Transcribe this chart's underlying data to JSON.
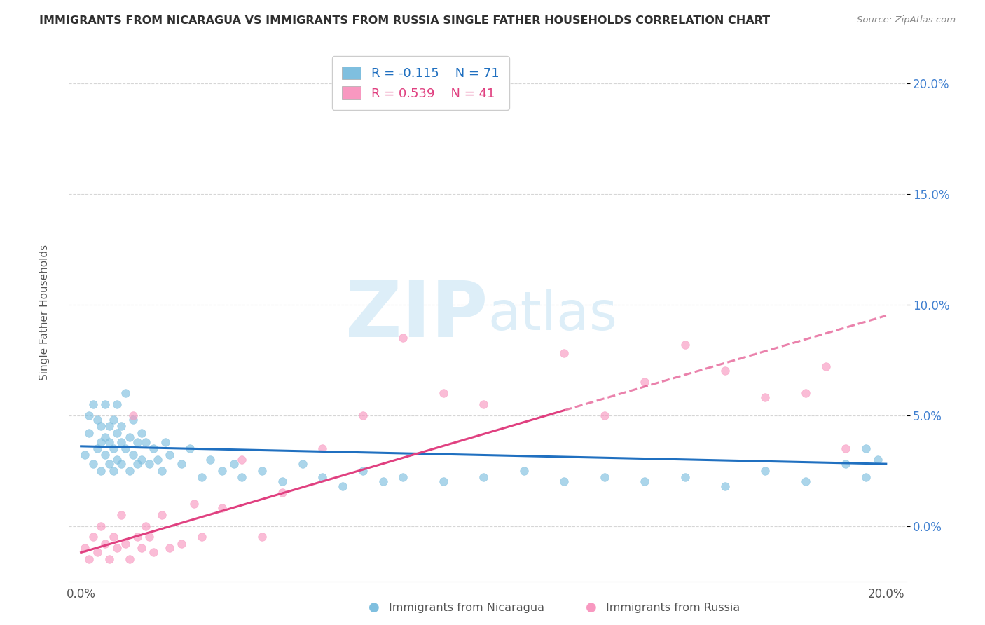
{
  "title": "IMMIGRANTS FROM NICARAGUA VS IMMIGRANTS FROM RUSSIA SINGLE FATHER HOUSEHOLDS CORRELATION CHART",
  "source": "Source: ZipAtlas.com",
  "ylabel": "Single Father Households",
  "xlim": [
    -0.003,
    0.205
  ],
  "ylim": [
    -0.025,
    0.215
  ],
  "yticks": [
    0.0,
    0.05,
    0.1,
    0.15,
    0.2
  ],
  "ytick_labels": [
    "0.0%",
    "5.0%",
    "10.0%",
    "15.0%",
    "20.0%"
  ],
  "xticks": [
    0.0,
    0.2
  ],
  "xtick_labels": [
    "0.0%",
    "20.0%"
  ],
  "nicaragua_R": -0.115,
  "nicaragua_N": 71,
  "russia_R": 0.539,
  "russia_N": 41,
  "nicaragua_color": "#7fbfdf",
  "russia_color": "#f898c0",
  "trend_nicaragua_color": "#2070c0",
  "trend_russia_color": "#e04080",
  "yaxis_label_color": "#4080d0",
  "watermark_color": "#d8e8f0",
  "background_color": "#ffffff",
  "grid_color": "#cccccc",
  "title_color": "#303030",
  "source_color": "#888888",
  "nicaragua_points_x": [
    0.001,
    0.002,
    0.002,
    0.003,
    0.003,
    0.004,
    0.004,
    0.005,
    0.005,
    0.005,
    0.006,
    0.006,
    0.006,
    0.007,
    0.007,
    0.007,
    0.008,
    0.008,
    0.008,
    0.009,
    0.009,
    0.009,
    0.01,
    0.01,
    0.01,
    0.011,
    0.011,
    0.012,
    0.012,
    0.013,
    0.013,
    0.014,
    0.014,
    0.015,
    0.015,
    0.016,
    0.017,
    0.018,
    0.019,
    0.02,
    0.021,
    0.022,
    0.025,
    0.027,
    0.03,
    0.032,
    0.035,
    0.038,
    0.04,
    0.045,
    0.05,
    0.055,
    0.06,
    0.065,
    0.07,
    0.075,
    0.08,
    0.09,
    0.1,
    0.11,
    0.12,
    0.13,
    0.14,
    0.15,
    0.16,
    0.17,
    0.18,
    0.19,
    0.195,
    0.195,
    0.198
  ],
  "nicaragua_points_y": [
    0.032,
    0.042,
    0.05,
    0.028,
    0.055,
    0.035,
    0.048,
    0.038,
    0.045,
    0.025,
    0.04,
    0.032,
    0.055,
    0.038,
    0.028,
    0.045,
    0.035,
    0.048,
    0.025,
    0.042,
    0.03,
    0.055,
    0.038,
    0.028,
    0.045,
    0.06,
    0.035,
    0.04,
    0.025,
    0.048,
    0.032,
    0.038,
    0.028,
    0.042,
    0.03,
    0.038,
    0.028,
    0.035,
    0.03,
    0.025,
    0.038,
    0.032,
    0.028,
    0.035,
    0.022,
    0.03,
    0.025,
    0.028,
    0.022,
    0.025,
    0.02,
    0.028,
    0.022,
    0.018,
    0.025,
    0.02,
    0.022,
    0.02,
    0.022,
    0.025,
    0.02,
    0.022,
    0.02,
    0.022,
    0.018,
    0.025,
    0.02,
    0.028,
    0.022,
    0.035,
    0.03
  ],
  "russia_points_x": [
    0.001,
    0.002,
    0.003,
    0.004,
    0.005,
    0.006,
    0.007,
    0.008,
    0.009,
    0.01,
    0.011,
    0.012,
    0.013,
    0.014,
    0.015,
    0.016,
    0.017,
    0.018,
    0.02,
    0.022,
    0.025,
    0.028,
    0.03,
    0.035,
    0.04,
    0.045,
    0.05,
    0.06,
    0.07,
    0.08,
    0.09,
    0.1,
    0.12,
    0.13,
    0.14,
    0.15,
    0.16,
    0.17,
    0.18,
    0.185,
    0.19
  ],
  "russia_points_y": [
    -0.01,
    -0.015,
    -0.005,
    -0.012,
    0.0,
    -0.008,
    -0.015,
    -0.005,
    -0.01,
    0.005,
    -0.008,
    -0.015,
    0.05,
    -0.005,
    -0.01,
    0.0,
    -0.005,
    -0.012,
    0.005,
    -0.01,
    -0.008,
    0.01,
    -0.005,
    0.008,
    0.03,
    -0.005,
    0.015,
    0.035,
    0.05,
    0.085,
    0.06,
    0.055,
    0.078,
    0.05,
    0.065,
    0.082,
    0.07,
    0.058,
    0.06,
    0.072,
    0.035
  ],
  "trend_nic_x0": 0.0,
  "trend_nic_y0": 0.036,
  "trend_nic_x1": 0.2,
  "trend_nic_y1": 0.028,
  "trend_rus_x0": 0.0,
  "trend_rus_y0": -0.012,
  "trend_rus_x1": 0.2,
  "trend_rus_y1": 0.095,
  "trend_rus_solid_end": 0.12,
  "trend_rus_dash_start": 0.12
}
